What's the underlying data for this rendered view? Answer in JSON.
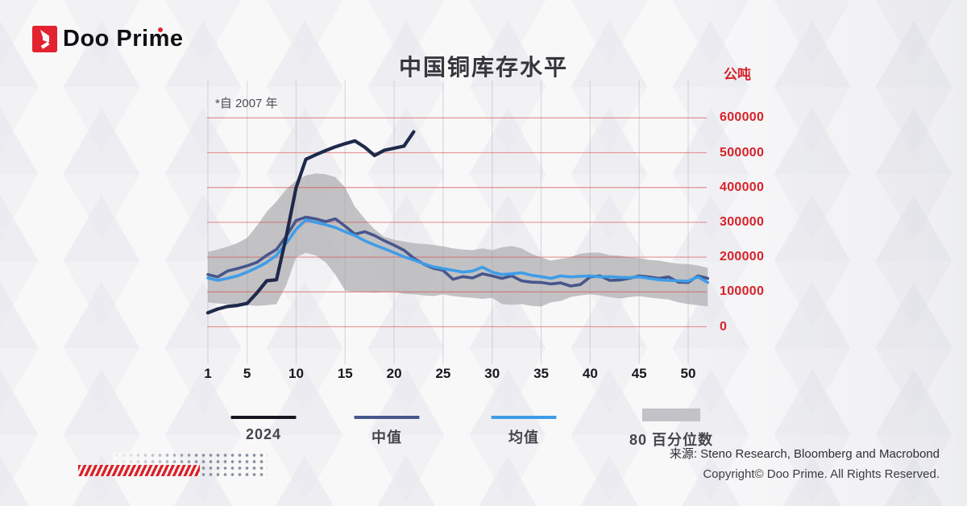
{
  "brand": {
    "name": "Doo Prime"
  },
  "chart_data": {
    "type": "line",
    "title": "中国铜库存水平",
    "y_axis_unit": "公吨",
    "note": "*自 2007 年",
    "x_ticks": [
      1,
      5,
      10,
      15,
      20,
      25,
      30,
      35,
      40,
      45,
      50
    ],
    "y_ticks": [
      600000,
      500000,
      400000,
      300000,
      200000,
      100000,
      0
    ],
    "x_range_weeks": [
      1,
      52
    ],
    "ylim": [
      0,
      660000
    ],
    "grid": {
      "horizontal_color": "#d95050",
      "vertical_color": "#9a9aa6"
    },
    "series": [
      {
        "name": "2024",
        "color": "#1f2949",
        "start_week": 1,
        "values": [
          40000,
          51000,
          58000,
          61000,
          67000,
          97000,
          132000,
          135000,
          260000,
          400000,
          481000,
          494000,
          506000,
          517000,
          526000,
          534000,
          516000,
          492000,
          507000,
          513000,
          519000,
          560000
        ]
      },
      {
        "name": "中值",
        "color": "#47568c",
        "start_week": 1,
        "values": [
          150000,
          143000,
          160000,
          167000,
          175000,
          185000,
          205000,
          222000,
          260000,
          305000,
          315000,
          310000,
          302000,
          310000,
          289000,
          266000,
          273000,
          262000,
          247000,
          234000,
          220000,
          197000,
          180000,
          168000,
          162000,
          136000,
          144000,
          140000,
          152000,
          146000,
          139000,
          146000,
          132000,
          128000,
          127000,
          123000,
          126000,
          117000,
          121000,
          143000,
          146000,
          133000,
          134000,
          139000,
          146000,
          143000,
          139000,
          143000,
          128000,
          127000,
          146000,
          139000
        ]
      },
      {
        "name": "均值",
        "color": "#3f9de8",
        "start_week": 1,
        "values": [
          140000,
          133000,
          139000,
          146000,
          157000,
          170000,
          185000,
          205000,
          240000,
          280000,
          307000,
          300000,
          293000,
          285000,
          273000,
          262000,
          247000,
          235000,
          224000,
          213000,
          201000,
          192000,
          181000,
          172000,
          167000,
          162000,
          157000,
          160000,
          171000,
          157000,
          150000,
          152000,
          155000,
          148000,
          144000,
          139000,
          146000,
          143000,
          145000,
          146000,
          143000,
          144000,
          142000,
          141000,
          143000,
          139000,
          135000,
          133000,
          132000,
          131000,
          143000,
          127000
        ]
      }
    ],
    "band": {
      "name": "80 百分位数",
      "color": "#b9b8bc",
      "lower": [
        70000,
        67000,
        65000,
        63000,
        62000,
        60000,
        62000,
        65000,
        120000,
        200000,
        212000,
        205000,
        185000,
        150000,
        104000,
        100000,
        100000,
        98000,
        100000,
        100000,
        95000,
        93000,
        90000,
        88000,
        93000,
        88000,
        85000,
        83000,
        80000,
        83000,
        65000,
        63000,
        65000,
        60000,
        58000,
        70000,
        74000,
        85000,
        90000,
        93000,
        90000,
        85000,
        81000,
        85000,
        88000,
        84000,
        81000,
        78000,
        70000,
        65000,
        62000,
        58000
      ],
      "upper": [
        215000,
        222000,
        230000,
        240000,
        255000,
        290000,
        330000,
        360000,
        395000,
        420000,
        435000,
        440000,
        438000,
        430000,
        400000,
        345000,
        310000,
        280000,
        258000,
        250000,
        245000,
        240000,
        238000,
        235000,
        231000,
        225000,
        222000,
        220000,
        225000,
        220000,
        228000,
        232000,
        225000,
        210000,
        199000,
        190000,
        195000,
        200000,
        210000,
        213000,
        213000,
        205000,
        204000,
        200000,
        197000,
        192000,
        190000,
        185000,
        181000,
        180000,
        176000,
        169000
      ]
    }
  },
  "legend": {
    "items": [
      {
        "label": "2024",
        "type": "line",
        "color": "#15171f"
      },
      {
        "label": "中值",
        "type": "line",
        "color": "#47568c"
      },
      {
        "label": "均值",
        "type": "line",
        "color": "#3f9de8"
      },
      {
        "label": "80 百分位数",
        "type": "box",
        "color": "#c3c2c6"
      }
    ]
  },
  "footer": {
    "source": "来源: Steno Research, Bloomberg and Macrobond",
    "copyright": "Copyright© Doo Prime. All Rights Reserved."
  }
}
